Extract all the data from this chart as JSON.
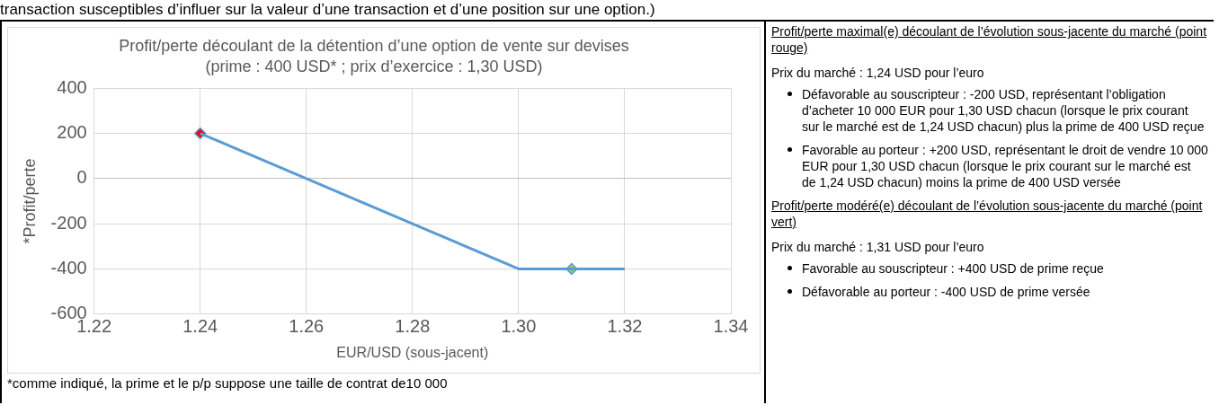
{
  "chart_data": {
    "type": "line",
    "title": "Profit/perte découlant de la détention d’une option de vente sur devises",
    "subtitle": "(prime : 400 USD* ; prix d’exercice : 1,30 USD)",
    "xlabel": "EUR/USD (sous-jacent)",
    "ylabel": "*Profit/perte",
    "series": [
      {
        "type": "line",
        "color": "#5b9bd5",
        "x": [
          1.24,
          1.3,
          1.32
        ],
        "values": [
          200,
          -400,
          -400
        ]
      },
      {
        "type": "scatter",
        "marker": "diamond",
        "colors": [
          "#ff0000",
          "#92d050"
        ],
        "x": [
          1.24,
          1.31
        ],
        "values": [
          200,
          -400
        ]
      }
    ],
    "xlim": [
      1.22,
      1.34
    ],
    "xticks": [
      {
        "value": 1.22,
        "label": "1.22"
      },
      {
        "value": 1.24,
        "label": "1.24"
      },
      {
        "value": 1.26,
        "label": "1.26"
      },
      {
        "value": 1.28,
        "label": "1.28"
      },
      {
        "value": 1.3,
        "label": "1.30"
      },
      {
        "value": 1.32,
        "label": "1.32"
      },
      {
        "value": 1.34,
        "label": "1.34"
      }
    ],
    "ylim": [
      -600,
      400
    ],
    "yticks": [
      -600,
      -400,
      -200,
      0,
      200,
      400
    ],
    "grid": true,
    "marker": "none",
    "annotations": [
      "transaction susceptibles d’influer sur la valeur d’une transaction et d’une position sur une option.)",
      "*comme indiqué, la prime et le p/p suppose une taille de contrat de10 000",
      "Profit/perte maximal(e) découlant de l’évolution sous-jacente du marché (point rouge)",
      "Prix du marché : 1,24 USD pour l’euro",
      "Défavorable au souscripteur : -200 USD, représentant l’obligation d’acheter 10 000 EUR pour 1,30 USD chacun (lorsque le prix courant sur le marché est de 1,24 USD chacun) plus la prime de 400 USD reçue",
      "Favorable au porteur : +200 USD, représentant le droit de vendre 10 000 EUR pour 1,30 USD chacun (lorsque le prix courant sur le marché est de 1,24 USD chacun) moins la prime de 400 USD versée",
      "Profit/perte modéré(e) découlant de l’évolution sous-jacente du marché (point vert)",
      "Prix du marché : 1,31 USD pour l’euro",
      "Favorable au souscripteur : +400 USD de prime reçue",
      "Défavorable au porteur : -400 USD de prime versée"
    ]
  }
}
